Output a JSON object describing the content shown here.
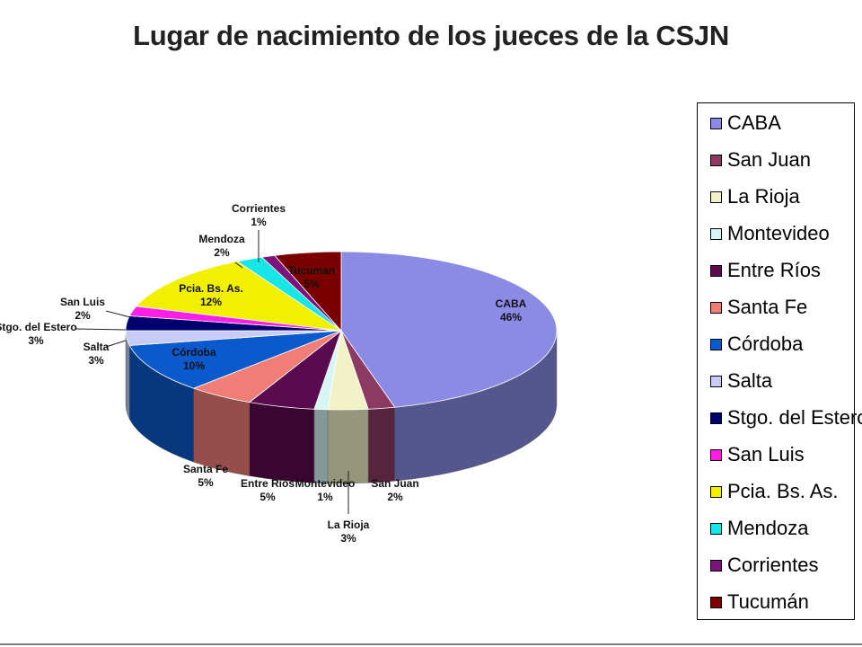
{
  "chart_data": {
    "type": "pie",
    "title": "Lugar de nacimiento de los jueces de la CSJN",
    "legend_position": "right",
    "slices": [
      {
        "name": "CABA",
        "value": 46,
        "label": "46%",
        "color": "#8B8BE6"
      },
      {
        "name": "San Juan",
        "value": 2,
        "label": "2%",
        "color": "#8B3A62"
      },
      {
        "name": "La Rioja",
        "value": 3,
        "label": "3%",
        "color": "#F2F2C8"
      },
      {
        "name": "Montevideo",
        "value": 1,
        "label": "1%",
        "color": "#D6F5F5"
      },
      {
        "name": "Entre Ríos",
        "value": 5,
        "label": "5%",
        "color": "#5A0A4E"
      },
      {
        "name": "Santa Fe",
        "value": 5,
        "label": "5%",
        "color": "#F07E76"
      },
      {
        "name": "Córdoba",
        "value": 10,
        "label": "10%",
        "color": "#0B5ACD"
      },
      {
        "name": "Salta",
        "value": 3,
        "label": "3%",
        "color": "#C8CCF5"
      },
      {
        "name": "Stgo. del Estero",
        "value": 3,
        "label": "3%",
        "color": "#00006E"
      },
      {
        "name": "San Luis",
        "value": 2,
        "label": "2%",
        "color": "#FF1EE6"
      },
      {
        "name": "Pcia. Bs. As.",
        "value": 12,
        "label": "12%",
        "color": "#F0F000"
      },
      {
        "name": "Mendoza",
        "value": 2,
        "label": "2%",
        "color": "#18E6E6"
      },
      {
        "name": "Corrientes",
        "value": 1,
        "label": "1%",
        "color": "#7A147A"
      },
      {
        "name": "Tucumán",
        "value": 5,
        "label": "5%",
        "color": "#7A0000"
      }
    ],
    "data_labels": [
      "CABA",
      "San Juan",
      "La Rioja",
      "Montevideo",
      "Entre Ríos",
      "Santa Fe",
      "Córdoba",
      "Salta",
      "Stgo. del Estero",
      "San Luis",
      "Pcia. Bs. As.",
      "Mendoza",
      "Corrientes",
      "Tucuman"
    ]
  }
}
